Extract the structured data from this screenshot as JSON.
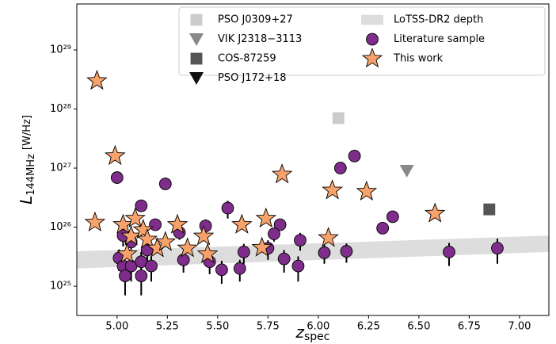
{
  "chart_data": {
    "type": "scatter",
    "xlabel": {
      "main": "z",
      "sub": "spec"
    },
    "ylabel": {
      "main": "L",
      "sub": "144MHz",
      "unit": "[W/Hz]"
    },
    "xlim": [
      4.8,
      7.146
    ],
    "ylim": [
      3.2e+24,
      6e+29
    ],
    "ylog": true,
    "xticks": [
      {
        "value": 5,
        "label": "5.00"
      },
      {
        "value": 5.25,
        "label": "5.25"
      },
      {
        "value": 5.5,
        "label": "5.50"
      },
      {
        "value": 5.75,
        "label": "5.75"
      },
      {
        "value": 6,
        "label": "6.00"
      },
      {
        "value": 6.25,
        "label": "6.25"
      },
      {
        "value": 6.5,
        "label": "6.50"
      },
      {
        "value": 6.75,
        "label": "6.75"
      },
      {
        "value": 7,
        "label": "7.00"
      }
    ],
    "yticks": [
      {
        "value": 1e+25,
        "label": "10²⁵"
      },
      {
        "value": 1e+26,
        "label": "10²⁶"
      },
      {
        "value": 1e+27,
        "label": "10²⁷"
      },
      {
        "value": 1e+28,
        "label": "10²⁸"
      },
      {
        "value": 1e+29,
        "label": "10²⁹"
      }
    ],
    "legend": "upper right",
    "series": [
      {
        "name": "PSO J0309+27",
        "color": "#cccccc",
        "marker": "square",
        "x": [
          6.1
        ],
        "values": [
          7e+27
        ]
      },
      {
        "name": "VIK J2318−3113",
        "color": "#888888",
        "marker": "triangle",
        "x": [
          6.44
        ],
        "values": [
          9e+26
        ]
      },
      {
        "name": "COS-87259",
        "color": "#555555",
        "marker": "square",
        "x": [
          6.85
        ],
        "values": [
          2e+26
        ]
      },
      {
        "name": "PSO J172+18",
        "color": "#111111",
        "marker": "triangle",
        "x": [
          6.82
        ],
        "values": [
          4.5e+25
        ]
      },
      {
        "name": "LoTSS-DR2 depth",
        "color": "#dddddd",
        "marker": "band",
        "x": [
          4.8,
          7.146
        ],
        "lower": [
          2e+25,
          3.8e+25
        ],
        "upper": [
          3.9e+25,
          7.2e+25
        ]
      },
      {
        "name": "Literature sample",
        "color": "#7e2d8a",
        "marker": "circle",
        "x": [
          5.0,
          5.12,
          5.24,
          6.11,
          6.18,
          6.37,
          6.32,
          5.81,
          5.78,
          5.55,
          5.44,
          5.31,
          5.19,
          5.07,
          5.01,
          5.03,
          5.04,
          5.07,
          5.12,
          5.12,
          5.17,
          5.15,
          5.33,
          5.46,
          5.52,
          5.61,
          5.63,
          5.75,
          5.83,
          5.9,
          5.91,
          6.03,
          6.14,
          6.65,
          6.89,
          5.03
        ],
        "values": [
          6.9e+26,
          2.3e+26,
          5.4e+26,
          1e+27,
          1.6e+27,
          1.5e+26,
          9.6e+25,
          1.1e+26,
          7.7e+25,
          2.1e+26,
          1.05e+26,
          8.1e+25,
          1.1e+26,
          5.6e+25,
          3e+25,
          2.2e+25,
          1.5e+25,
          2.2e+25,
          1.5e+25,
          2.6e+25,
          2.2e+25,
          4.1e+25,
          2.8e+25,
          2.6e+25,
          1.9e+25,
          2e+25,
          3.8e+25,
          4.4e+25,
          2.9e+25,
          2.2e+25,
          6e+25,
          3.7e+25,
          3.9e+25,
          3.8e+25,
          4.4e+25,
          7.2e+25
        ],
        "yerr": [
          1e+26,
          5e+25,
          8e+25,
          1.5e+26,
          2e+26,
          3e+25,
          2e+25,
          2e+25,
          2e+25,
          7e+25,
          3e+25,
          2e+25,
          2e+25,
          1.5e+25,
          1.2e+25,
          1e+25,
          8e+24,
          1e+25,
          8e+24,
          1.2e+25,
          1e+25,
          1.5e+25,
          1.1e+25,
          1e+25,
          8e+24,
          8e+24,
          1.4e+25,
          1.6e+25,
          1.2e+25,
          1e+25,
          2e+25,
          1.3e+25,
          1.4e+25,
          1.6e+25,
          2e+25,
          2.5e+25
        ]
      },
      {
        "name": "This work",
        "color": "#f7a26b",
        "marker": "star",
        "x": [
          4.9,
          4.99,
          4.89,
          5.03,
          5.09,
          5.07,
          5.13,
          5.15,
          5.05,
          5.2,
          5.24,
          5.3,
          5.35,
          5.43,
          5.45,
          5.62,
          5.72,
          5.74,
          5.82,
          6.05,
          6.07,
          6.24,
          6.58
        ],
        "values": [
          3e+28,
          1.6e+27,
          1.2e+26,
          1.1e+26,
          1.4e+26,
          7e+25,
          9e+25,
          6.2e+25,
          3.5e+25,
          4.4e+25,
          5.6e+25,
          1.1e+26,
          4.4e+25,
          7e+25,
          3.5e+25,
          1.1e+26,
          4.5e+25,
          1.4e+26,
          7.8e+26,
          6.6e+25,
          4.2e+26,
          4e+26,
          1.7e+26
        ]
      }
    ]
  }
}
